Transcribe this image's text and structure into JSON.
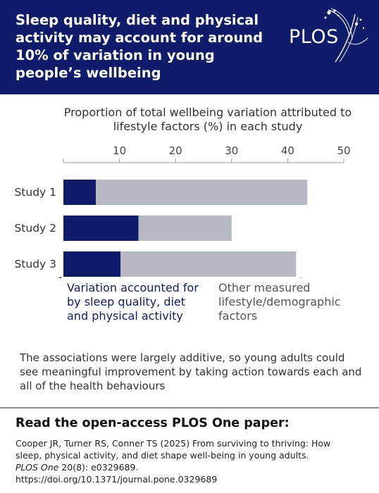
{
  "header": {
    "title": "Sleep quality, diet and physical activity may account for around 10% of variation in young people’s wellbeing",
    "logo_text": "PLOS"
  },
  "chart_data": {
    "type": "bar",
    "orientation": "horizontal",
    "stacked": true,
    "title": "Proportion of total wellbeing variation attributed to lifestyle factors (%) in each study",
    "categories": [
      "Study 1",
      "Study 2",
      "Study 3"
    ],
    "series": [
      {
        "name": "Variation accounted for by sleep quality, diet and physical activity",
        "values": [
          5.8,
          13.4,
          10.2
        ],
        "color": "#0f1b6b"
      },
      {
        "name": "Other measured lifestyle/demographic factors",
        "values": [
          37.7,
          16.6,
          31.3
        ],
        "color": "#b8bac3"
      }
    ],
    "xlim": [
      0,
      50
    ],
    "xticks": [
      "10",
      "20",
      "30",
      "40",
      "50"
    ],
    "xtick_values": [
      10,
      20,
      30,
      40,
      50
    ],
    "axis_position": "top",
    "grid": false
  },
  "annotations": {
    "left": "Variation accounted for by sleep quality, diet and physical activity",
    "right": "Other measured lifestyle/demographic factors"
  },
  "footnote": "The associations were largely additive, so young adults could see meaningful improvement by taking action towards each and all of the health behaviours",
  "reference": {
    "heading": "Read the open-access PLOS One paper:",
    "line1": "Cooper JR, Turner RS, Conner TS (2025) From surviving to thriving: How",
    "line2": "sleep, physical activity, and diet shape well-being in young adults.",
    "journal": "PLOS One",
    "citation": " 20(8): e0329689.",
    "doi": "https://doi.org/10.1371/journal.pone.0329689"
  }
}
